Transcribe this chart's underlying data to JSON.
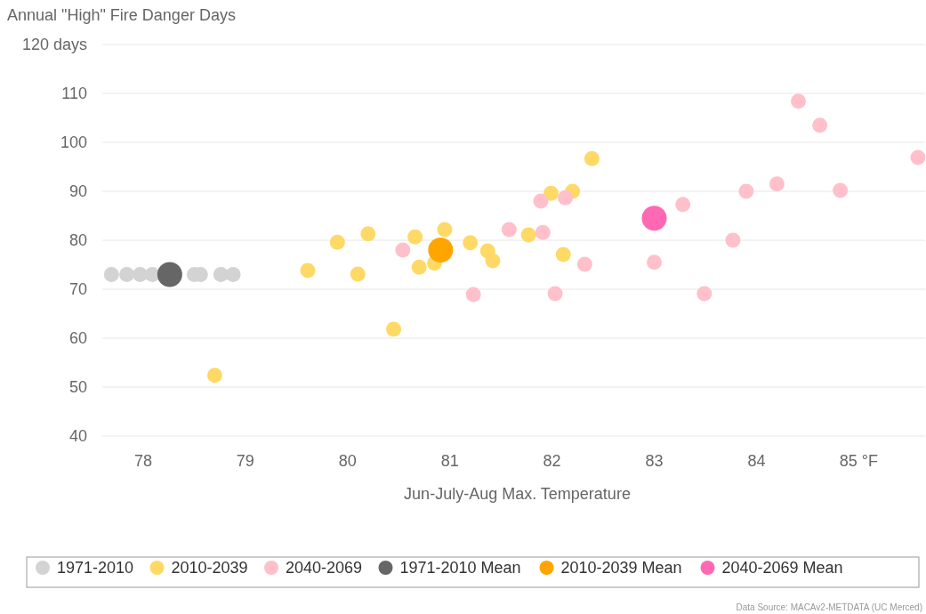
{
  "chart_data": {
    "type": "scatter",
    "title": "Annual \"High\" Fire Danger Days",
    "xlabel": "Jun-July-Aug Max. Temperature",
    "annotations": [
      "Data Source: MACAv2-METDATA (UC Merced)"
    ],
    "xlim": [
      77.6,
      85.65
    ],
    "xticks": [
      78,
      79,
      80,
      81,
      82,
      83,
      84,
      {
        "value": 85,
        "label": "85 °F"
      }
    ],
    "ylim": [
      40,
      120
    ],
    "yticks": [
      40,
      50,
      60,
      70,
      80,
      90,
      100,
      110,
      {
        "value": 120,
        "label": "120 days"
      }
    ],
    "grid": "y",
    "legend": "bottom",
    "marker": "circle",
    "series": [
      {
        "name": "1971-2010",
        "color": "#d3d3d3",
        "x": [
          77.69,
          77.84,
          77.97,
          78.09,
          78.5,
          78.56,
          78.76,
          78.88
        ],
        "values": [
          73,
          73,
          73,
          73,
          73,
          73,
          73,
          73
        ]
      },
      {
        "name": "2010-2039",
        "color": "#ffd966",
        "x": [
          78.7,
          79.61,
          79.9,
          80.1,
          80.2,
          80.45,
          80.66,
          80.7,
          80.85,
          80.95,
          81.2,
          81.37,
          81.42,
          81.77,
          81.99,
          82.11,
          82.2,
          82.39
        ],
        "values": [
          52.4,
          73.8,
          79.6,
          73.1,
          81.3,
          61.8,
          80.7,
          74.5,
          75.3,
          82.2,
          79.5,
          77.8,
          75.8,
          81.1,
          89.6,
          77.1,
          90,
          96.7
        ]
      },
      {
        "name": "2040-2069",
        "color": "#ffc0cb",
        "x": [
          80.54,
          81.23,
          81.58,
          81.89,
          81.91,
          82.03,
          82.13,
          82.32,
          83.0,
          83.28,
          83.49,
          83.77,
          83.9,
          84.2,
          84.41,
          84.62,
          84.82,
          85.58
        ],
        "values": [
          78,
          68.9,
          82.2,
          88,
          81.6,
          69.1,
          88.7,
          75.1,
          75.5,
          87.3,
          69.1,
          80,
          90,
          91.5,
          108.4,
          103.5,
          90.2,
          96.9
        ]
      },
      {
        "name": "1971-2010 Mean",
        "type": "bubble",
        "color": "#666666",
        "x": [
          78.26
        ],
        "values": [
          73
        ],
        "sizes": [
          1
        ]
      },
      {
        "name": "2010-2039 Mean",
        "type": "bubble",
        "color": "#ffa500",
        "x": [
          80.91
        ],
        "values": [
          78
        ],
        "sizes": [
          1
        ]
      },
      {
        "name": "2040-2069 Mean",
        "type": "bubble",
        "color": "#ff69b4",
        "x": [
          83.0
        ],
        "values": [
          84.5
        ],
        "sizes": [
          1
        ]
      }
    ]
  }
}
